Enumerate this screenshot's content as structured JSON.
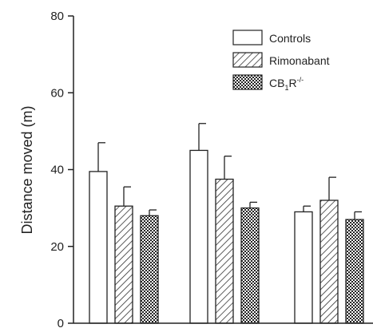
{
  "chart_data": {
    "type": "bar",
    "title": "",
    "xlabel": "",
    "ylabel": "Distance moved (m)",
    "ylim": [
      0,
      80
    ],
    "yticks": [
      0,
      20,
      40,
      60,
      80
    ],
    "grid": false,
    "legend_position": "top-right",
    "categories": [
      "",
      "",
      ""
    ],
    "series": [
      {
        "name": "Controls",
        "pattern": "open",
        "values": [
          39.5,
          45.0,
          29.0
        ],
        "errors": [
          7.5,
          7.0,
          1.5
        ]
      },
      {
        "name": "Rimonabant",
        "pattern": "hatched",
        "values": [
          30.5,
          37.5,
          32.0
        ],
        "errors": [
          5.0,
          6.0,
          6.0
        ]
      },
      {
        "name": "CB1R-/-",
        "pattern": "crosshatched",
        "values": [
          28.0,
          30.0,
          27.0
        ],
        "errors": [
          1.5,
          1.5,
          2.0
        ]
      }
    ]
  },
  "legend_text": {
    "controls": "Controls",
    "rimonabant": "Rimonabant",
    "cb1r_main": "CB",
    "cb1r_sub": "1",
    "cb1r_sup": "R",
    "cb1r_exp": "-/-"
  }
}
